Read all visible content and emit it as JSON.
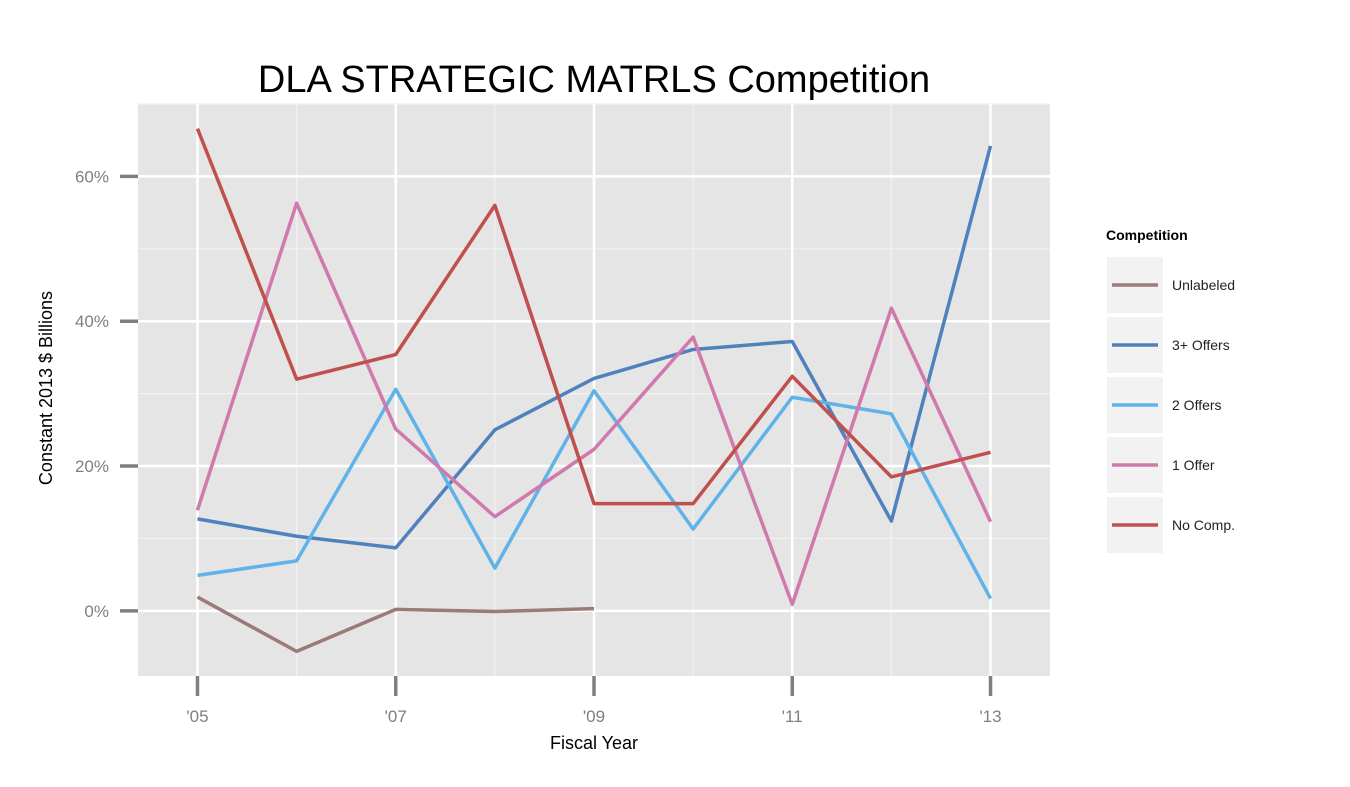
{
  "chart_data": {
    "type": "line",
    "title": "DLA STRATEGIC MATRLS Competition",
    "xlabel": "Fiscal Year",
    "ylabel": "Constant 2013 $ Billions",
    "x": [
      2005,
      2006,
      2007,
      2008,
      2009,
      2010,
      2011,
      2012,
      2013
    ],
    "xlim": [
      2004.4,
      2013.6
    ],
    "ylim": [
      -0.09,
      0.7
    ],
    "x_ticks": [
      {
        "value": 2005,
        "label": "'05"
      },
      {
        "value": 2007,
        "label": "'07"
      },
      {
        "value": 2009,
        "label": "'09"
      },
      {
        "value": 2011,
        "label": "'11"
      },
      {
        "value": 2013,
        "label": "'13"
      }
    ],
    "y_ticks": [
      {
        "value": 0.0,
        "label": "0%"
      },
      {
        "value": 0.2,
        "label": "20%"
      },
      {
        "value": 0.4,
        "label": "40%"
      },
      {
        "value": 0.6,
        "label": "60%"
      }
    ],
    "grid": true,
    "legend": {
      "title": "Competition",
      "position": "right"
    },
    "series": [
      {
        "name": "Unlabeled",
        "color": "#9b7a78",
        "values": [
          0.019,
          -0.056,
          0.002,
          -0.001,
          0.003,
          null,
          null,
          null,
          null
        ]
      },
      {
        "name": "3+ Offers",
        "color": "#4f81bd",
        "values": [
          0.127,
          0.103,
          0.087,
          0.25,
          0.321,
          0.361,
          0.372,
          0.124,
          0.642
        ]
      },
      {
        "name": "2 Offers",
        "color": "#5fb3e8",
        "values": [
          0.049,
          0.069,
          0.306,
          0.059,
          0.304,
          0.113,
          0.295,
          0.272,
          0.017
        ]
      },
      {
        "name": "1 Offer",
        "color": "#cf79ad",
        "values": [
          0.139,
          0.563,
          0.251,
          0.13,
          0.223,
          0.378,
          0.009,
          0.418,
          0.123
        ]
      },
      {
        "name": "No Comp.",
        "color": "#c0504d",
        "values": [
          0.666,
          0.32,
          0.354,
          0.56,
          0.148,
          0.148,
          0.324,
          0.185,
          0.219
        ]
      }
    ]
  }
}
